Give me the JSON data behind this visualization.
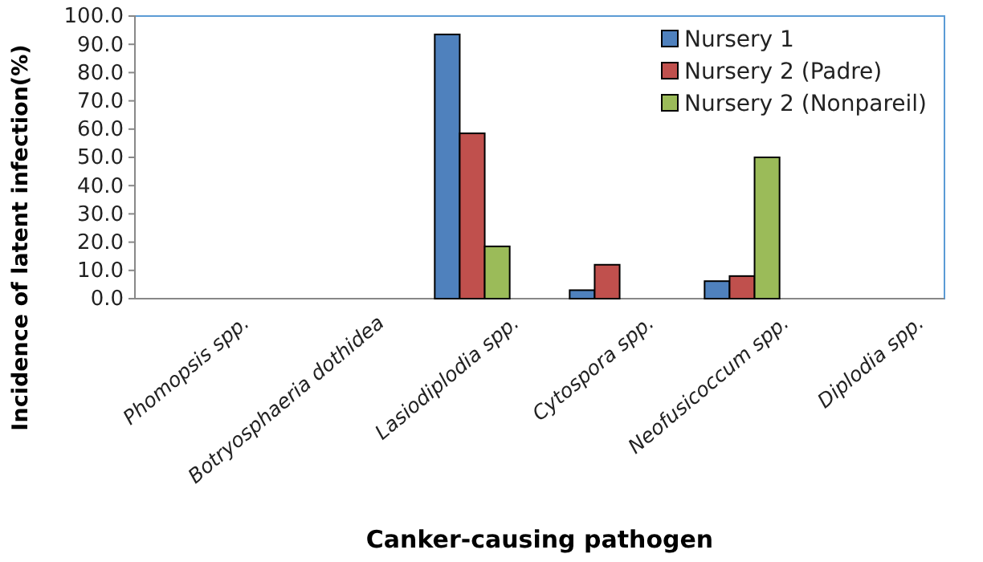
{
  "chart_data": {
    "type": "bar",
    "xlabel": "Canker-causing pathogen",
    "ylabel": "Incidence  of latent infection(%)",
    "categories": [
      "Phomopsis   spp.",
      "Botryosphaeria dothidea",
      "Lasiodiplodia   spp.",
      "Cytospora    spp.",
      "Neofusicoccum   spp.",
      "Diplodia   spp."
    ],
    "series": [
      {
        "name": "Nursery 1",
        "color": "#4f81bd",
        "values": [
          0,
          0,
          93.5,
          3.0,
          6.2,
          0
        ]
      },
      {
        "name": "Nursery 2 (Padre)",
        "color": "#c0504d",
        "values": [
          0,
          0,
          58.5,
          12.0,
          8.0,
          0
        ]
      },
      {
        "name": "Nursery 2 (Nonpareil)",
        "color": "#9bbb59",
        "values": [
          0,
          0,
          18.5,
          0,
          50.0,
          0
        ]
      }
    ],
    "ylim": [
      0,
      100
    ],
    "yticks": [
      {
        "value": 0,
        "label": "0.0"
      },
      {
        "value": 10,
        "label": "10.0"
      },
      {
        "value": 20,
        "label": "20.0"
      },
      {
        "value": 30,
        "label": "30.0"
      },
      {
        "value": 40,
        "label": "40.0"
      },
      {
        "value": 50,
        "label": "50.0"
      },
      {
        "value": 60,
        "label": "60.0"
      },
      {
        "value": 70,
        "label": "70.0"
      },
      {
        "value": 80,
        "label": "80.0"
      },
      {
        "value": 90,
        "label": "90.0"
      },
      {
        "value": 100,
        "label": "100.0"
      }
    ],
    "grid": false,
    "legend": "top right"
  }
}
